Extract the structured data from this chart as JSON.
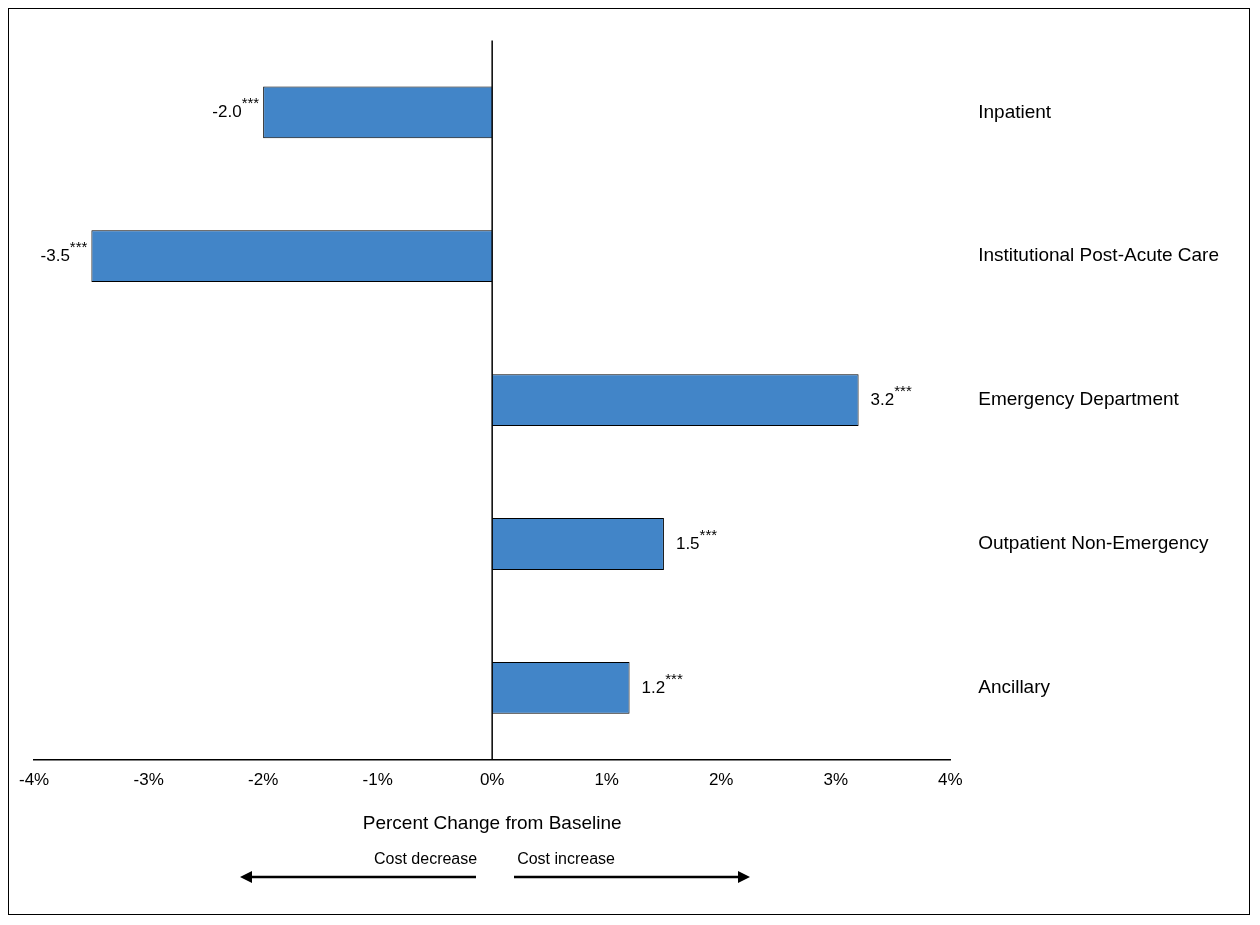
{
  "chart_data": {
    "type": "bar",
    "orientation": "horizontal",
    "xlabel": "Percent Change from Baseline",
    "categories": [
      "Inpatient",
      "Institutional Post-Acute Care",
      "Emergency Department",
      "Outpatient Non-Emergency",
      "Ancillary"
    ],
    "values": [
      -2.0,
      -3.5,
      3.2,
      1.5,
      1.2
    ],
    "color": "#4285c8",
    "value_labels": [
      "-2.0$^{***}$",
      "-3.5$^{***}$",
      "3.2$^{***}$",
      "1.5$^{***}$",
      "1.2$^{***}$"
    ],
    "xlim": [
      -4,
      4
    ],
    "xticks": [
      {
        "value": -4,
        "label": "-4%"
      },
      {
        "value": -3,
        "label": "-3%"
      },
      {
        "value": -2,
        "label": "-2%"
      },
      {
        "value": -1,
        "label": "-1%"
      },
      {
        "value": 0,
        "label": "0%"
      },
      {
        "value": 1,
        "label": "1%"
      },
      {
        "value": 2,
        "label": "2%"
      },
      {
        "value": 3,
        "label": "3%"
      },
      {
        "value": 4,
        "label": "4%"
      }
    ],
    "grid": false,
    "legend": false,
    "ref_lines": [
      {
        "axis": "x",
        "value": 0,
        "color": "#000000"
      }
    ],
    "annotations": [
      "Cost decrease",
      "Cost increase"
    ]
  }
}
